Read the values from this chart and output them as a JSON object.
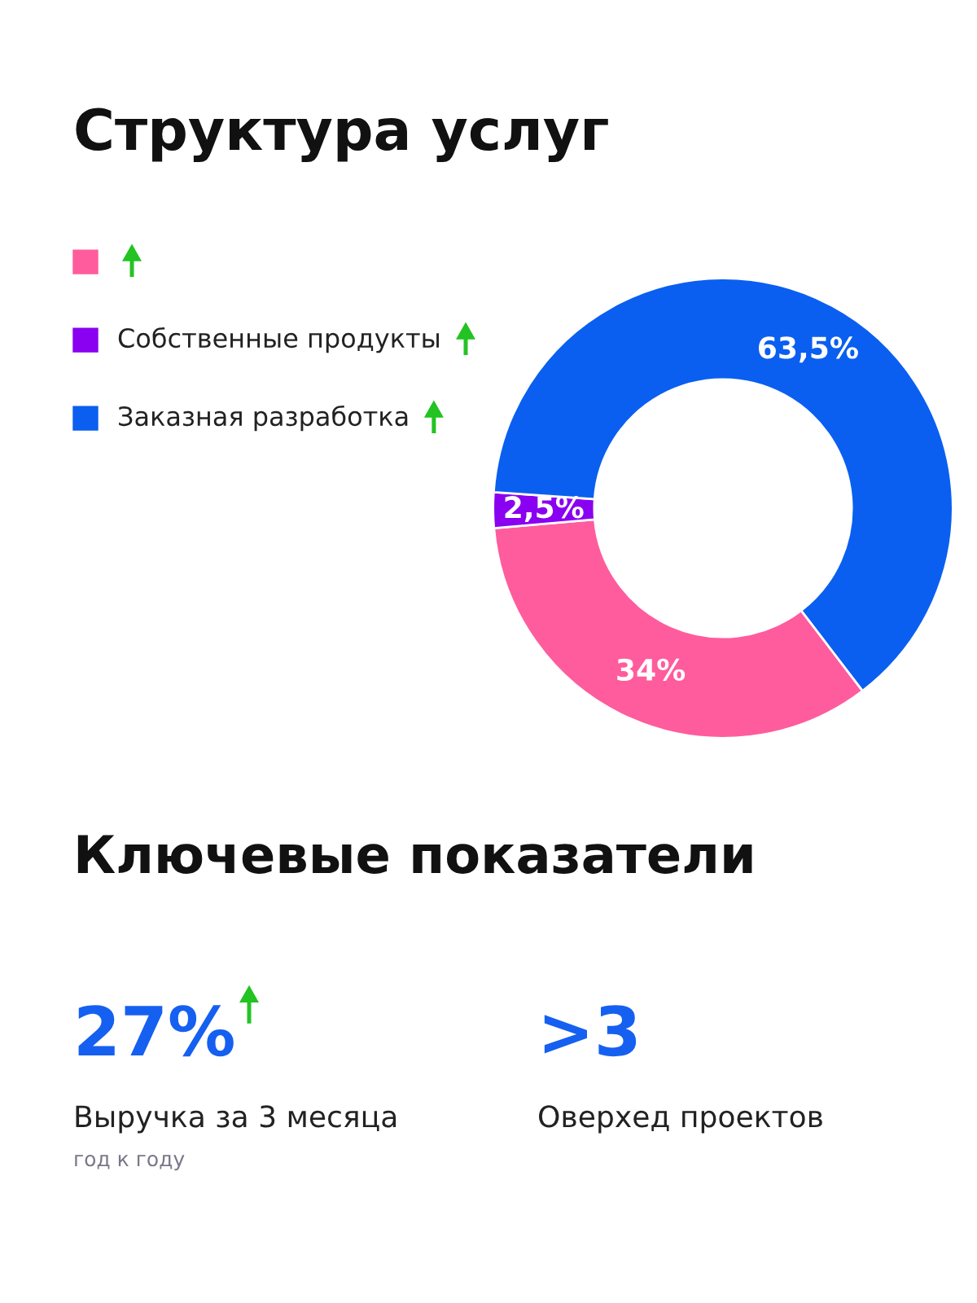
{
  "chart_data": [
    {
      "type": "donut",
      "title": "Структура услуг",
      "categories": [
        null,
        "Собственные продукты",
        "Заказная разработка"
      ],
      "values": [
        34,
        2.5,
        63.5
      ],
      "colors": [
        "#ff5c9d",
        "#8a00f0",
        "#0a5ff0"
      ],
      "value_labels": [
        "34%",
        "2,5%",
        "63,5%"
      ],
      "legend": "left"
    },
    {
      "type": "other",
      "title": "Ключевые показатели",
      "annotations": [
        "27%",
        "Выручка за 3 месяца",
        "год к году",
        ">3",
        "Оверхед проектов"
      ]
    }
  ]
}
